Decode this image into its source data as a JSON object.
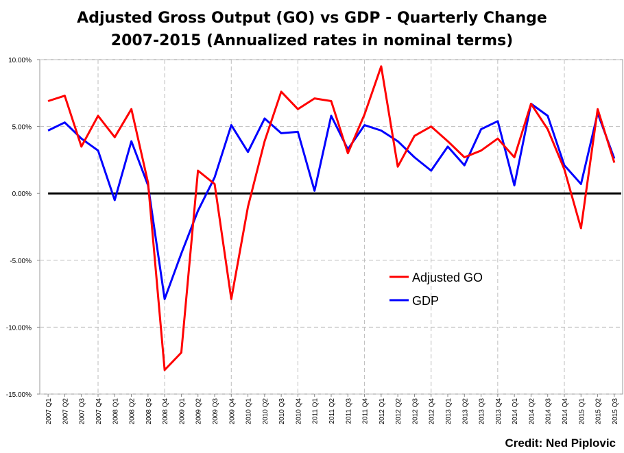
{
  "title_line1": "Adjusted Gross Output (GO) vs GDP - Quarterly Change",
  "title_line2": "2007-2015 (Annualized rates in nominal terms)",
  "credit": "Credit: Ned Piplovic",
  "chart_data": {
    "type": "line",
    "categories": [
      "2007 Q1",
      "2007 Q2",
      "2007 Q3",
      "2007 Q4",
      "2008 Q1",
      "2008 Q2",
      "2008 Q3",
      "2008 Q4",
      "2009 Q1",
      "2009 Q2",
      "2009 Q3",
      "2009 Q4",
      "2010 Q1",
      "2010 Q2",
      "2010 Q3",
      "2010 Q4",
      "2011 Q1",
      "2011 Q2",
      "2011 Q3",
      "2011 Q4",
      "2012 Q1",
      "2012 Q2",
      "2012 Q3",
      "2012 Q4",
      "2013 Q1",
      "2013 Q2",
      "2013 Q3",
      "2013 Q4",
      "2014 Q1",
      "2014 Q2",
      "2014 Q3",
      "2014 Q4",
      "2015 Q1",
      "2015 Q2",
      "2015 Q3"
    ],
    "series": [
      {
        "name": "Adjusted GO",
        "color": "#ff0000",
        "values": [
          6.9,
          7.3,
          3.5,
          5.8,
          4.2,
          6.3,
          0.8,
          -13.2,
          -11.9,
          1.7,
          0.7,
          -7.9,
          -1.0,
          3.9,
          7.6,
          6.3,
          7.1,
          6.9,
          3.0,
          5.9,
          9.5,
          2.0,
          4.3,
          5.0,
          3.9,
          2.7,
          3.2,
          4.1,
          2.7,
          6.7,
          4.8,
          1.8,
          -2.6,
          6.3,
          2.3
        ]
      },
      {
        "name": "GDP",
        "color": "#0000ff",
        "values": [
          4.7,
          5.3,
          4.1,
          3.2,
          -0.5,
          3.9,
          0.6,
          -7.9,
          -4.5,
          -1.3,
          1.2,
          5.1,
          3.1,
          5.6,
          4.5,
          4.6,
          0.2,
          5.8,
          3.3,
          5.1,
          4.7,
          3.9,
          2.7,
          1.7,
          3.5,
          2.1,
          4.8,
          5.4,
          0.6,
          6.7,
          5.8,
          2.1,
          0.7,
          6.0,
          2.6
        ]
      }
    ],
    "ylim": [
      -15,
      10
    ],
    "yticks": [
      10,
      5,
      0,
      -5,
      -10,
      -15
    ],
    "ytick_labels": [
      "10.00%",
      "5.00%",
      "0.00%",
      "-5.00%",
      "-10.00%",
      "-15.00%"
    ],
    "grid": true,
    "legend_position": "lower-middle"
  }
}
